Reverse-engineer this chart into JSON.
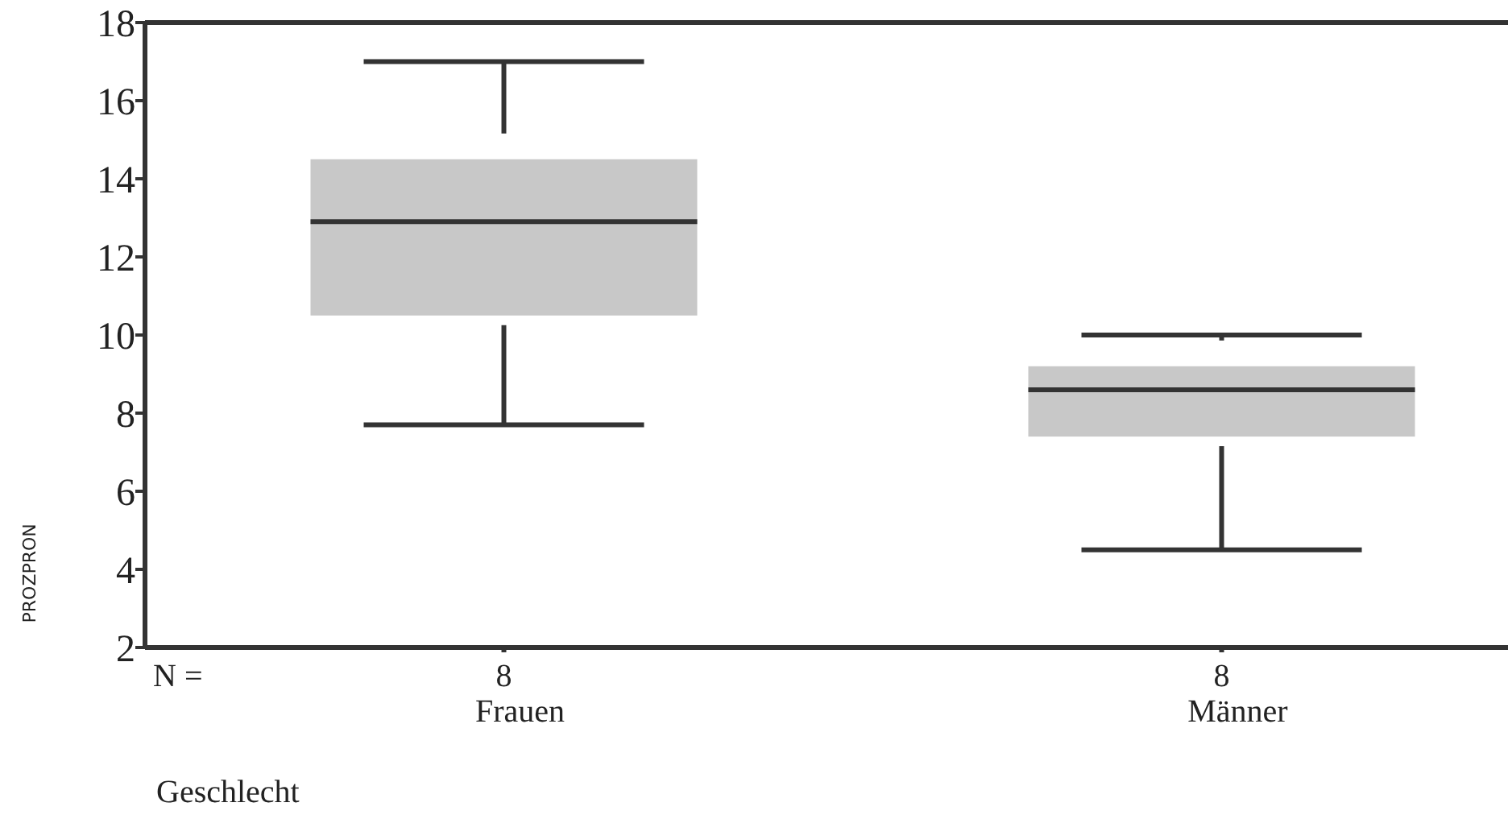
{
  "chart_data": {
    "type": "box",
    "categories": [
      "Frauen",
      "Männer"
    ],
    "boxes": [
      {
        "low": 7.7,
        "q1": 10.5,
        "median": 12.9,
        "q3": 14.5,
        "high": 17.0
      },
      {
        "low": 4.5,
        "q1": 7.4,
        "median": 8.6,
        "q3": 9.2,
        "high": 10.0
      }
    ],
    "color": "#c8c8c8",
    "ylim": [
      2,
      18
    ],
    "yticks": [
      2,
      4,
      6,
      8,
      10,
      12,
      14,
      16,
      18
    ],
    "xlabel": "Geschlecht",
    "ylabel": "PROZPRON",
    "annotations": [
      "N =",
      "8",
      "8"
    ],
    "grid": false
  }
}
